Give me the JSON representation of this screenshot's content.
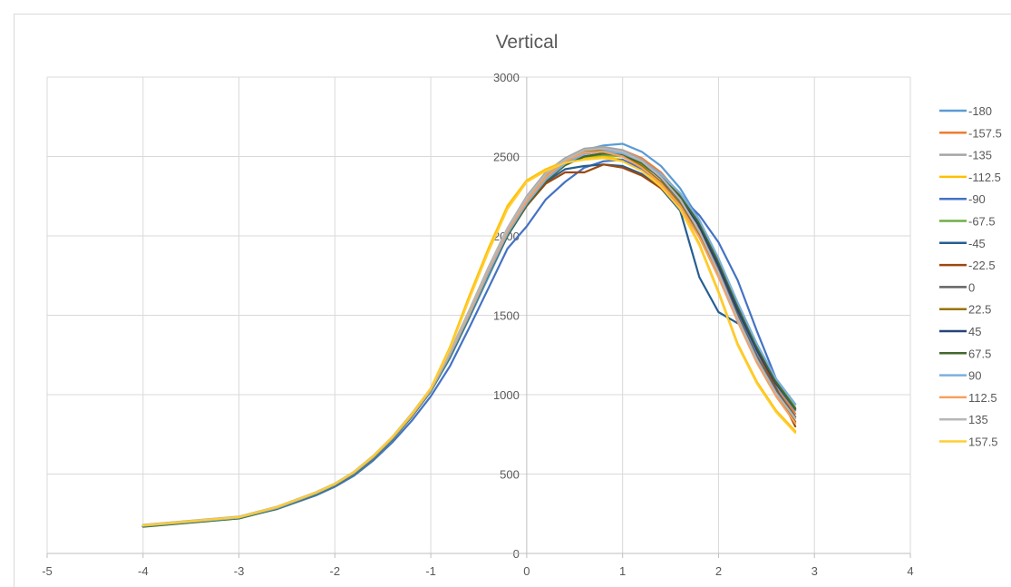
{
  "chart_data": {
    "type": "line",
    "title": "Vertical",
    "xlabel": "",
    "ylabel": "",
    "xlim": [
      -5,
      4
    ],
    "ylim": [
      0,
      3000
    ],
    "x_ticks": [
      "-5",
      "-4",
      "-3",
      "-2",
      "-1",
      "0",
      "1",
      "2",
      "3",
      "4"
    ],
    "y_ticks": [
      "0",
      "500",
      "1000",
      "1500",
      "2000",
      "2500",
      "3000"
    ],
    "grid": true,
    "legend_position": "right",
    "x": [
      -4,
      -3,
      -2.6,
      -2.2,
      -2,
      -1.8,
      -1.6,
      -1.4,
      -1.2,
      -1,
      -0.8,
      -0.6,
      -0.4,
      -0.2,
      0,
      0.2,
      0.4,
      0.6,
      0.8,
      1,
      1.2,
      1.4,
      1.6,
      1.8,
      2,
      2.2,
      2.4,
      2.6,
      2.8
    ],
    "series": [
      {
        "name": "-180",
        "color": "#5b9bd5",
        "values": [
          170,
          225,
          285,
          375,
          430,
          505,
          600,
          720,
          860,
          1020,
          1230,
          1480,
          1740,
          2000,
          2200,
          2360,
          2470,
          2540,
          2570,
          2580,
          2530,
          2440,
          2300,
          2100,
          1820,
          1500,
          1260,
          1060,
          900
        ]
      },
      {
        "name": "-157.5",
        "color": "#ed7d31",
        "values": [
          175,
          230,
          290,
          380,
          435,
          510,
          610,
          730,
          870,
          1030,
          1250,
          1500,
          1770,
          2020,
          2220,
          2380,
          2480,
          2540,
          2550,
          2540,
          2490,
          2400,
          2260,
          2060,
          1790,
          1480,
          1240,
          1040,
          880
        ]
      },
      {
        "name": "-135",
        "color": "#a5a5a5",
        "values": [
          180,
          232,
          295,
          385,
          440,
          515,
          615,
          735,
          880,
          1040,
          1270,
          1530,
          1800,
          2050,
          2250,
          2400,
          2490,
          2550,
          2560,
          2540,
          2480,
          2380,
          2230,
          2020,
          1760,
          1460,
          1220,
          1020,
          860
        ]
      },
      {
        "name": "-112.5",
        "color": "#ffc000",
        "values": [
          178,
          228,
          292,
          382,
          438,
          512,
          612,
          732,
          875,
          1040,
          1300,
          1620,
          1920,
          2190,
          2350,
          2420,
          2470,
          2490,
          2500,
          2480,
          2420,
          2320,
          2180,
          1950,
          1650,
          1320,
          1080,
          900,
          770
        ]
      },
      {
        "name": "-90",
        "color": "#4472c4",
        "values": [
          172,
          222,
          280,
          365,
          420,
          490,
          585,
          700,
          835,
          990,
          1180,
          1420,
          1670,
          1920,
          2060,
          2230,
          2340,
          2430,
          2470,
          2480,
          2420,
          2340,
          2250,
          2130,
          1960,
          1720,
          1400,
          1100,
          940
        ]
      },
      {
        "name": "-67.5",
        "color": "#70ad47",
        "values": [
          168,
          220,
          282,
          372,
          428,
          500,
          598,
          718,
          860,
          1020,
          1240,
          1490,
          1760,
          2010,
          2200,
          2360,
          2450,
          2500,
          2510,
          2500,
          2450,
          2370,
          2250,
          2080,
          1840,
          1560,
          1300,
          1080,
          920
        ]
      },
      {
        "name": "-45",
        "color": "#255e91",
        "values": [
          170,
          222,
          284,
          374,
          430,
          502,
          600,
          720,
          862,
          1022,
          1240,
          1490,
          1760,
          2000,
          2190,
          2340,
          2420,
          2440,
          2450,
          2440,
          2390,
          2300,
          2160,
          1740,
          1520,
          1450,
          null,
          null,
          null
        ]
      },
      {
        "name": "-22.5",
        "color": "#9e480e",
        "values": [
          174,
          226,
          288,
          378,
          434,
          508,
          606,
          726,
          866,
          1026,
          1250,
          1500,
          1770,
          2010,
          2190,
          2330,
          2400,
          2400,
          2450,
          2430,
          2380,
          2300,
          2190,
          2040,
          1820,
          1550,
          1280,
          1040,
          800
        ]
      },
      {
        "name": "0",
        "color": "#636363",
        "values": [
          175,
          227,
          290,
          380,
          435,
          510,
          608,
          728,
          868,
          1028,
          1255,
          1505,
          1770,
          2020,
          2210,
          2360,
          2460,
          2520,
          2540,
          2520,
          2460,
          2360,
          2220,
          2030,
          1780,
          1500,
          1240,
          1030,
          860
        ]
      },
      {
        "name": "22.5",
        "color": "#997300",
        "values": [
          176,
          228,
          291,
          381,
          436,
          511,
          609,
          729,
          869,
          1030,
          1260,
          1510,
          1780,
          2030,
          2220,
          2370,
          2470,
          2530,
          2540,
          2510,
          2440,
          2340,
          2200,
          2000,
          1750,
          1470,
          1210,
          1000,
          830
        ]
      },
      {
        "name": "45",
        "color": "#264478",
        "values": [
          171,
          223,
          285,
          375,
          431,
          505,
          603,
          723,
          865,
          1025,
          1245,
          1495,
          1760,
          2010,
          2200,
          2350,
          2450,
          2500,
          2520,
          2510,
          2460,
          2370,
          2240,
          2060,
          1810,
          1530,
          1280,
          1070,
          910
        ]
      },
      {
        "name": "67.5",
        "color": "#43682b",
        "values": [
          169,
          221,
          283,
          373,
          429,
          503,
          601,
          721,
          863,
          1023,
          1242,
          1492,
          1758,
          2005,
          2195,
          2345,
          2445,
          2500,
          2520,
          2510,
          2460,
          2370,
          2250,
          2080,
          1840,
          1560,
          1300,
          1080,
          910
        ]
      },
      {
        "name": "90",
        "color": "#7cafdd",
        "values": [
          173,
          225,
          287,
          377,
          433,
          507,
          605,
          725,
          866,
          1026,
          1250,
          1500,
          1765,
          2015,
          2205,
          2355,
          2455,
          2515,
          2535,
          2520,
          2470,
          2390,
          2270,
          2100,
          1860,
          1580,
          1320,
          1100,
          940
        ]
      },
      {
        "name": "112.5",
        "color": "#f4a061",
        "values": [
          176,
          229,
          292,
          382,
          437,
          512,
          610,
          730,
          870,
          1032,
          1262,
          1512,
          1782,
          2030,
          2220,
          2370,
          2470,
          2525,
          2530,
          2500,
          2430,
          2330,
          2190,
          1990,
          1740,
          1460,
          1200,
          990,
          820
        ]
      },
      {
        "name": "135",
        "color": "#b7b7b7",
        "values": [
          179,
          231,
          294,
          384,
          439,
          514,
          612,
          734,
          877,
          1038,
          1270,
          1525,
          1795,
          2045,
          2240,
          2390,
          2480,
          2540,
          2550,
          2530,
          2470,
          2370,
          2230,
          2030,
          1770,
          1480,
          1220,
          1010,
          850
        ]
      },
      {
        "name": "157.5",
        "color": "#ffcd33",
        "values": [
          177,
          229,
          293,
          383,
          438,
          513,
          613,
          733,
          876,
          1040,
          1290,
          1600,
          1900,
          2170,
          2340,
          2410,
          2460,
          2480,
          2490,
          2470,
          2410,
          2310,
          2170,
          1940,
          1640,
          1310,
          1070,
          890,
          760
        ]
      }
    ]
  }
}
